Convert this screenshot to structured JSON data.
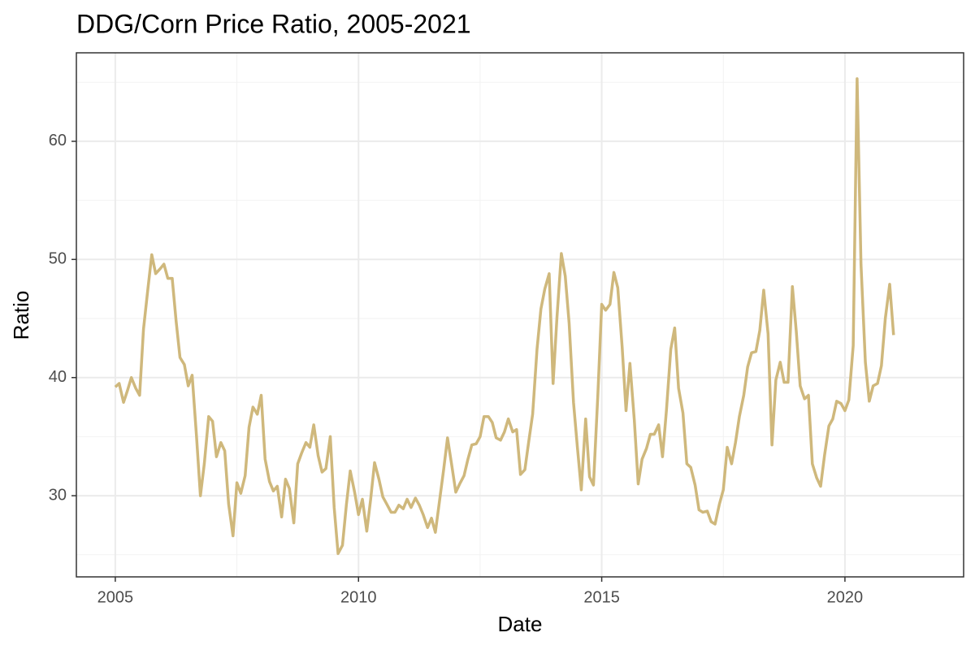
{
  "chart_data": {
    "type": "line",
    "title": "DDG/Corn Price Ratio, 2005-2021",
    "x_label": "Date",
    "y_label": "Ratio",
    "x": [
      2005.0,
      2005.08,
      2005.17,
      2005.25,
      2005.33,
      2005.42,
      2005.5,
      2005.58,
      2005.67,
      2005.75,
      2005.83,
      2005.92,
      2006.0,
      2006.08,
      2006.17,
      2006.25,
      2006.33,
      2006.42,
      2006.5,
      2006.58,
      2006.67,
      2006.75,
      2006.83,
      2006.92,
      2007.0,
      2007.08,
      2007.17,
      2007.25,
      2007.33,
      2007.42,
      2007.5,
      2007.58,
      2007.67,
      2007.75,
      2007.83,
      2007.92,
      2008.0,
      2008.08,
      2008.17,
      2008.25,
      2008.33,
      2008.42,
      2008.5,
      2008.58,
      2008.67,
      2008.75,
      2008.83,
      2008.92,
      2009.0,
      2009.08,
      2009.17,
      2009.25,
      2009.33,
      2009.42,
      2009.5,
      2009.58,
      2009.67,
      2009.75,
      2009.83,
      2009.92,
      2010.0,
      2010.08,
      2010.17,
      2010.25,
      2010.33,
      2010.42,
      2010.5,
      2010.58,
      2010.67,
      2010.75,
      2010.83,
      2010.92,
      2011.0,
      2011.08,
      2011.17,
      2011.25,
      2011.33,
      2011.42,
      2011.5,
      2011.58,
      2011.67,
      2011.75,
      2011.83,
      2011.92,
      2012.0,
      2012.08,
      2012.17,
      2012.25,
      2012.33,
      2012.42,
      2012.5,
      2012.58,
      2012.67,
      2012.75,
      2012.83,
      2012.92,
      2013.0,
      2013.08,
      2013.17,
      2013.25,
      2013.33,
      2013.42,
      2013.5,
      2013.58,
      2013.67,
      2013.75,
      2013.83,
      2013.92,
      2014.0,
      2014.08,
      2014.17,
      2014.25,
      2014.33,
      2014.42,
      2014.5,
      2014.58,
      2014.67,
      2014.75,
      2014.83,
      2014.92,
      2015.0,
      2015.08,
      2015.17,
      2015.25,
      2015.33,
      2015.42,
      2015.5,
      2015.58,
      2015.67,
      2015.75,
      2015.83,
      2015.92,
      2016.0,
      2016.08,
      2016.17,
      2016.25,
      2016.33,
      2016.42,
      2016.5,
      2016.58,
      2016.67,
      2016.75,
      2016.83,
      2016.92,
      2017.0,
      2017.08,
      2017.17,
      2017.25,
      2017.33,
      2017.42,
      2017.5,
      2017.58,
      2017.67,
      2017.75,
      2017.83,
      2017.92,
      2018.0,
      2018.08,
      2018.17,
      2018.25,
      2018.33,
      2018.42,
      2018.5,
      2018.58,
      2018.67,
      2018.75,
      2018.83,
      2018.92,
      2019.0,
      2019.08,
      2019.17,
      2019.25,
      2019.33,
      2019.42,
      2019.5,
      2019.58,
      2019.67,
      2019.75,
      2019.83,
      2019.92,
      2020.0,
      2020.08,
      2020.17,
      2020.25,
      2020.33,
      2020.42,
      2020.5,
      2020.58,
      2020.67,
      2020.75,
      2020.83,
      2020.92,
      2021.0
    ],
    "values": [
      39.2,
      39.5,
      37.9,
      38.9,
      40.0,
      39.1,
      38.5,
      44.1,
      47.5,
      50.4,
      48.8,
      49.2,
      49.6,
      48.4,
      48.4,
      44.8,
      41.7,
      41.1,
      39.3,
      40.2,
      35.0,
      30.0,
      32.7,
      36.7,
      36.3,
      33.3,
      34.5,
      33.8,
      29.3,
      26.6,
      31.1,
      30.2,
      31.7,
      35.8,
      37.5,
      36.9,
      38.5,
      33.1,
      31.2,
      30.4,
      30.8,
      28.2,
      31.4,
      30.6,
      27.7,
      32.7,
      33.6,
      34.5,
      34.1,
      36.0,
      33.4,
      32.0,
      32.3,
      35.0,
      29.0,
      25.1,
      25.8,
      29.2,
      32.1,
      30.3,
      28.4,
      29.7,
      27.0,
      29.7,
      32.8,
      31.4,
      29.9,
      29.3,
      28.6,
      28.6,
      29.2,
      28.9,
      29.7,
      29.0,
      29.8,
      29.2,
      28.4,
      27.3,
      28.1,
      26.9,
      29.7,
      32.2,
      34.9,
      32.5,
      30.3,
      31.0,
      31.7,
      33.1,
      34.3,
      34.4,
      35.0,
      36.7,
      36.7,
      36.2,
      34.9,
      34.7,
      35.4,
      36.5,
      35.4,
      35.6,
      31.8,
      32.2,
      34.6,
      36.9,
      42.4,
      45.8,
      47.5,
      48.8,
      39.5,
      45.1,
      50.5,
      48.6,
      44.6,
      37.9,
      34.1,
      30.5,
      36.5,
      31.6,
      30.9,
      38.5,
      46.2,
      45.7,
      46.2,
      48.9,
      47.6,
      42.6,
      37.2,
      41.2,
      36.4,
      31.0,
      33.1,
      34.0,
      35.2,
      35.2,
      36.0,
      33.3,
      37.2,
      42.4,
      44.2,
      39.1,
      37.0,
      32.7,
      32.4,
      30.9,
      28.8,
      28.6,
      28.7,
      27.8,
      27.6,
      29.3,
      30.5,
      34.1,
      32.7,
      34.5,
      36.7,
      38.5,
      40.9,
      42.1,
      42.2,
      44.0,
      47.4,
      43.7,
      34.3,
      39.8,
      41.3,
      39.6,
      39.6,
      47.7,
      43.9,
      39.3,
      38.2,
      38.5,
      32.7,
      31.5,
      30.8,
      33.4,
      35.9,
      36.5,
      38.0,
      37.8,
      37.2,
      38.1,
      42.7,
      65.3,
      49.6,
      41.3,
      38.0,
      39.3,
      39.5,
      41.0,
      45.0,
      47.9,
      43.6
    ],
    "color": "#cfb87c",
    "xlim": [
      2004.2,
      2022.44
    ],
    "xticks": [
      2005,
      2010,
      2015,
      2020
    ],
    "xminor": [
      2007.5,
      2012.5,
      2017.5
    ],
    "ylim": [
      23.13,
      67.49
    ],
    "yticks": [
      30,
      40,
      50,
      60
    ],
    "yminor": [
      25,
      35,
      45,
      55,
      65
    ],
    "grid": true
  }
}
